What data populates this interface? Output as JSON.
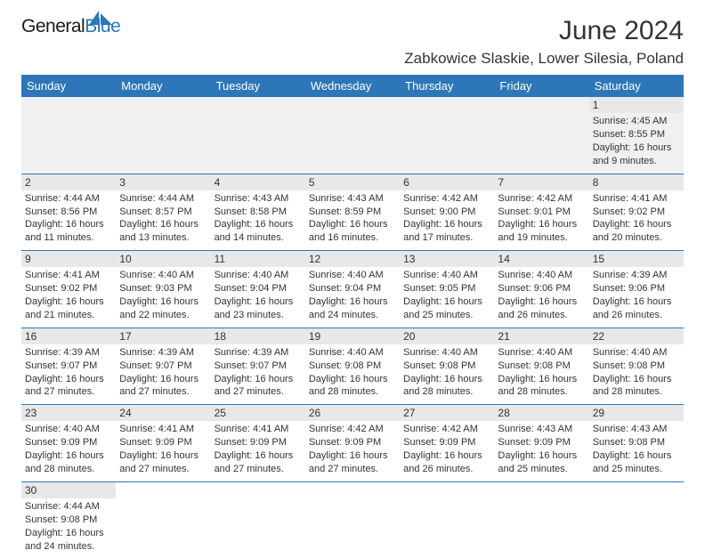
{
  "brand": {
    "name1": "General",
    "name2": "Blue",
    "icon_color": "#2d77b8"
  },
  "title": {
    "month": "June 2024",
    "location": "Zabkowice Slaskie, Lower Silesia, Poland"
  },
  "style": {
    "header_bg": "#2d77b8",
    "header_fg": "#ffffff",
    "daynum_bg": "#e8e8e8",
    "row_border": "#2d77b8",
    "body_font_size": 11,
    "header_font_size": 13,
    "month_font_size": 30,
    "location_font_size": 17
  },
  "weekdays": [
    "Sunday",
    "Monday",
    "Tuesday",
    "Wednesday",
    "Thursday",
    "Friday",
    "Saturday"
  ],
  "weeks": [
    [
      {
        "n": "",
        "sunrise": "",
        "sunset": "",
        "daylight": ""
      },
      {
        "n": "",
        "sunrise": "",
        "sunset": "",
        "daylight": ""
      },
      {
        "n": "",
        "sunrise": "",
        "sunset": "",
        "daylight": ""
      },
      {
        "n": "",
        "sunrise": "",
        "sunset": "",
        "daylight": ""
      },
      {
        "n": "",
        "sunrise": "",
        "sunset": "",
        "daylight": ""
      },
      {
        "n": "",
        "sunrise": "",
        "sunset": "",
        "daylight": ""
      },
      {
        "n": "1",
        "sunrise": "Sunrise: 4:45 AM",
        "sunset": "Sunset: 8:55 PM",
        "daylight": "Daylight: 16 hours and 9 minutes."
      }
    ],
    [
      {
        "n": "2",
        "sunrise": "Sunrise: 4:44 AM",
        "sunset": "Sunset: 8:56 PM",
        "daylight": "Daylight: 16 hours and 11 minutes."
      },
      {
        "n": "3",
        "sunrise": "Sunrise: 4:44 AM",
        "sunset": "Sunset: 8:57 PM",
        "daylight": "Daylight: 16 hours and 13 minutes."
      },
      {
        "n": "4",
        "sunrise": "Sunrise: 4:43 AM",
        "sunset": "Sunset: 8:58 PM",
        "daylight": "Daylight: 16 hours and 14 minutes."
      },
      {
        "n": "5",
        "sunrise": "Sunrise: 4:43 AM",
        "sunset": "Sunset: 8:59 PM",
        "daylight": "Daylight: 16 hours and 16 minutes."
      },
      {
        "n": "6",
        "sunrise": "Sunrise: 4:42 AM",
        "sunset": "Sunset: 9:00 PM",
        "daylight": "Daylight: 16 hours and 17 minutes."
      },
      {
        "n": "7",
        "sunrise": "Sunrise: 4:42 AM",
        "sunset": "Sunset: 9:01 PM",
        "daylight": "Daylight: 16 hours and 19 minutes."
      },
      {
        "n": "8",
        "sunrise": "Sunrise: 4:41 AM",
        "sunset": "Sunset: 9:02 PM",
        "daylight": "Daylight: 16 hours and 20 minutes."
      }
    ],
    [
      {
        "n": "9",
        "sunrise": "Sunrise: 4:41 AM",
        "sunset": "Sunset: 9:02 PM",
        "daylight": "Daylight: 16 hours and 21 minutes."
      },
      {
        "n": "10",
        "sunrise": "Sunrise: 4:40 AM",
        "sunset": "Sunset: 9:03 PM",
        "daylight": "Daylight: 16 hours and 22 minutes."
      },
      {
        "n": "11",
        "sunrise": "Sunrise: 4:40 AM",
        "sunset": "Sunset: 9:04 PM",
        "daylight": "Daylight: 16 hours and 23 minutes."
      },
      {
        "n": "12",
        "sunrise": "Sunrise: 4:40 AM",
        "sunset": "Sunset: 9:04 PM",
        "daylight": "Daylight: 16 hours and 24 minutes."
      },
      {
        "n": "13",
        "sunrise": "Sunrise: 4:40 AM",
        "sunset": "Sunset: 9:05 PM",
        "daylight": "Daylight: 16 hours and 25 minutes."
      },
      {
        "n": "14",
        "sunrise": "Sunrise: 4:40 AM",
        "sunset": "Sunset: 9:06 PM",
        "daylight": "Daylight: 16 hours and 26 minutes."
      },
      {
        "n": "15",
        "sunrise": "Sunrise: 4:39 AM",
        "sunset": "Sunset: 9:06 PM",
        "daylight": "Daylight: 16 hours and 26 minutes."
      }
    ],
    [
      {
        "n": "16",
        "sunrise": "Sunrise: 4:39 AM",
        "sunset": "Sunset: 9:07 PM",
        "daylight": "Daylight: 16 hours and 27 minutes."
      },
      {
        "n": "17",
        "sunrise": "Sunrise: 4:39 AM",
        "sunset": "Sunset: 9:07 PM",
        "daylight": "Daylight: 16 hours and 27 minutes."
      },
      {
        "n": "18",
        "sunrise": "Sunrise: 4:39 AM",
        "sunset": "Sunset: 9:07 PM",
        "daylight": "Daylight: 16 hours and 27 minutes."
      },
      {
        "n": "19",
        "sunrise": "Sunrise: 4:40 AM",
        "sunset": "Sunset: 9:08 PM",
        "daylight": "Daylight: 16 hours and 28 minutes."
      },
      {
        "n": "20",
        "sunrise": "Sunrise: 4:40 AM",
        "sunset": "Sunset: 9:08 PM",
        "daylight": "Daylight: 16 hours and 28 minutes."
      },
      {
        "n": "21",
        "sunrise": "Sunrise: 4:40 AM",
        "sunset": "Sunset: 9:08 PM",
        "daylight": "Daylight: 16 hours and 28 minutes."
      },
      {
        "n": "22",
        "sunrise": "Sunrise: 4:40 AM",
        "sunset": "Sunset: 9:08 PM",
        "daylight": "Daylight: 16 hours and 28 minutes."
      }
    ],
    [
      {
        "n": "23",
        "sunrise": "Sunrise: 4:40 AM",
        "sunset": "Sunset: 9:09 PM",
        "daylight": "Daylight: 16 hours and 28 minutes."
      },
      {
        "n": "24",
        "sunrise": "Sunrise: 4:41 AM",
        "sunset": "Sunset: 9:09 PM",
        "daylight": "Daylight: 16 hours and 27 minutes."
      },
      {
        "n": "25",
        "sunrise": "Sunrise: 4:41 AM",
        "sunset": "Sunset: 9:09 PM",
        "daylight": "Daylight: 16 hours and 27 minutes."
      },
      {
        "n": "26",
        "sunrise": "Sunrise: 4:42 AM",
        "sunset": "Sunset: 9:09 PM",
        "daylight": "Daylight: 16 hours and 27 minutes."
      },
      {
        "n": "27",
        "sunrise": "Sunrise: 4:42 AM",
        "sunset": "Sunset: 9:09 PM",
        "daylight": "Daylight: 16 hours and 26 minutes."
      },
      {
        "n": "28",
        "sunrise": "Sunrise: 4:43 AM",
        "sunset": "Sunset: 9:09 PM",
        "daylight": "Daylight: 16 hours and 25 minutes."
      },
      {
        "n": "29",
        "sunrise": "Sunrise: 4:43 AM",
        "sunset": "Sunset: 9:08 PM",
        "daylight": "Daylight: 16 hours and 25 minutes."
      }
    ],
    [
      {
        "n": "30",
        "sunrise": "Sunrise: 4:44 AM",
        "sunset": "Sunset: 9:08 PM",
        "daylight": "Daylight: 16 hours and 24 minutes."
      },
      {
        "n": "",
        "sunrise": "",
        "sunset": "",
        "daylight": ""
      },
      {
        "n": "",
        "sunrise": "",
        "sunset": "",
        "daylight": ""
      },
      {
        "n": "",
        "sunrise": "",
        "sunset": "",
        "daylight": ""
      },
      {
        "n": "",
        "sunrise": "",
        "sunset": "",
        "daylight": ""
      },
      {
        "n": "",
        "sunrise": "",
        "sunset": "",
        "daylight": ""
      },
      {
        "n": "",
        "sunrise": "",
        "sunset": "",
        "daylight": ""
      }
    ]
  ]
}
